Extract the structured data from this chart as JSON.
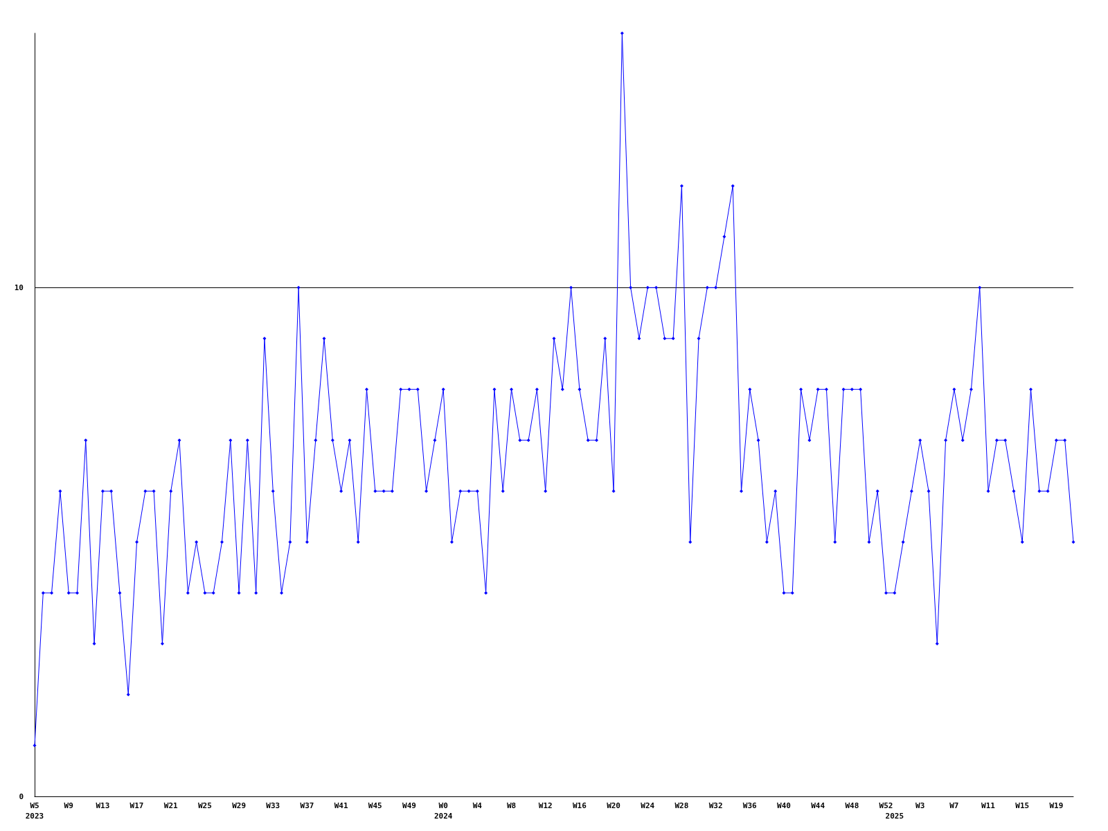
{
  "chart_data": {
    "type": "line",
    "categories": [
      "W5\n2023",
      null,
      null,
      null,
      "W9",
      null,
      null,
      null,
      "W13",
      null,
      null,
      null,
      "W17",
      null,
      null,
      null,
      "W21",
      null,
      null,
      null,
      "W25",
      null,
      null,
      null,
      "W29",
      null,
      null,
      null,
      "W33",
      null,
      null,
      null,
      "W37",
      null,
      null,
      null,
      "W41",
      null,
      null,
      null,
      "W45",
      null,
      null,
      null,
      "W49",
      null,
      null,
      null,
      "W0\n2024",
      null,
      null,
      null,
      "W4",
      null,
      null,
      null,
      "W8",
      null,
      null,
      null,
      "W12",
      null,
      null,
      null,
      "W16",
      null,
      null,
      null,
      "W20",
      null,
      null,
      null,
      "W24",
      null,
      null,
      null,
      "W28",
      null,
      null,
      null,
      "W32",
      null,
      null,
      null,
      "W36",
      null,
      null,
      null,
      "W40",
      null,
      null,
      null,
      "W44",
      null,
      null,
      null,
      "W48",
      null,
      null,
      null,
      "W52",
      "\n2025",
      null,
      null,
      "W3",
      null,
      null,
      null,
      "W7",
      null,
      null,
      null,
      "W11",
      null,
      null,
      null,
      "W15",
      null,
      null,
      null,
      "W19",
      null,
      null
    ],
    "values": [
      1,
      4,
      4,
      6,
      4,
      4,
      7,
      3,
      6,
      6,
      4,
      2,
      5,
      6,
      6,
      3,
      6,
      7,
      4,
      5,
      4,
      4,
      5,
      7,
      4,
      7,
      4,
      9,
      6,
      4,
      5,
      10,
      5,
      7,
      9,
      7,
      6,
      7,
      5,
      8,
      6,
      6,
      6,
      8,
      8,
      8,
      6,
      7,
      8,
      5,
      6,
      6,
      6,
      4,
      8,
      6,
      8,
      7,
      7,
      8,
      6,
      9,
      8,
      10,
      8,
      7,
      7,
      9,
      6,
      15,
      10,
      9,
      10,
      10,
      9,
      9,
      12,
      5,
      9,
      10,
      10,
      11,
      12,
      6,
      8,
      7,
      5,
      6,
      4,
      4,
      8,
      7,
      8,
      8,
      5,
      8,
      8,
      8,
      5,
      6,
      4,
      4,
      5,
      6,
      7,
      6,
      3,
      7,
      8,
      7,
      8,
      10,
      6,
      7,
      7,
      6,
      5,
      8,
      6,
      6,
      7,
      7,
      5
    ],
    "color": "#0000ff",
    "ylim": [
      0,
      15
    ],
    "yticks": [
      0,
      10
    ],
    "grid": "y",
    "marker": "diamond",
    "line_style": "solid"
  }
}
